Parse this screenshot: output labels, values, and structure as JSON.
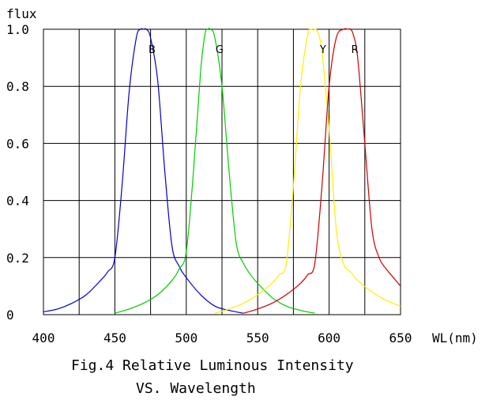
{
  "chart_data": {
    "type": "line",
    "ylabel": "flux",
    "xlabel": "WL(nm)",
    "xlim": [
      400,
      650
    ],
    "ylim": [
      0,
      1.0
    ],
    "x_ticks": [
      "400",
      "450",
      "500",
      "550",
      "600",
      "650"
    ],
    "y_ticks": [
      "0",
      "0.2",
      "0.4",
      "0.6",
      "0.8",
      "1.0"
    ],
    "grid": true,
    "caption_line1": "Fig.4 Relative Luminous Intensity",
    "caption_line2": "VS. Wavelength",
    "series": [
      {
        "name": "B",
        "color": "#0000cc",
        "x": [
          400,
          410,
          420,
          430,
          440,
          445,
          450,
          455,
          460,
          465,
          468,
          470,
          472,
          475,
          480,
          485,
          490,
          495,
          500,
          510,
          520,
          530,
          540
        ],
        "y": [
          0.01,
          0.02,
          0.04,
          0.07,
          0.12,
          0.15,
          0.2,
          0.45,
          0.78,
          0.97,
          1.0,
          1.0,
          1.0,
          0.97,
          0.82,
          0.5,
          0.24,
          0.17,
          0.13,
          0.07,
          0.03,
          0.015,
          0.005
        ]
      },
      {
        "name": "G",
        "color": "#00cc00",
        "x": [
          450,
          460,
          470,
          480,
          490,
          495,
          500,
          505,
          510,
          513,
          515,
          517,
          520,
          525,
          530,
          535,
          540,
          545,
          550,
          560,
          570,
          580,
          590
        ],
        "y": [
          0.005,
          0.02,
          0.04,
          0.07,
          0.12,
          0.16,
          0.22,
          0.5,
          0.85,
          0.98,
          1.0,
          1.0,
          0.97,
          0.8,
          0.5,
          0.25,
          0.18,
          0.14,
          0.11,
          0.06,
          0.03,
          0.015,
          0.005
        ]
      },
      {
        "name": "Y",
        "color": "#ffee00",
        "x": [
          520,
          530,
          540,
          550,
          560,
          565,
          570,
          575,
          580,
          585,
          588,
          590,
          592,
          595,
          600,
          605,
          610,
          615,
          620,
          630,
          640,
          650
        ],
        "y": [
          0.005,
          0.02,
          0.04,
          0.07,
          0.11,
          0.14,
          0.18,
          0.45,
          0.8,
          0.98,
          1.0,
          1.0,
          0.99,
          0.92,
          0.65,
          0.3,
          0.18,
          0.15,
          0.12,
          0.08,
          0.05,
          0.03
        ]
      },
      {
        "name": "R",
        "color": "#cc0000",
        "x": [
          540,
          550,
          560,
          570,
          580,
          585,
          590,
          595,
          600,
          605,
          610,
          613,
          615,
          617,
          620,
          625,
          630,
          635,
          640,
          645,
          650
        ],
        "y": [
          0.005,
          0.02,
          0.04,
          0.07,
          0.11,
          0.14,
          0.18,
          0.45,
          0.8,
          0.97,
          1.0,
          1.0,
          1.0,
          0.98,
          0.9,
          0.6,
          0.3,
          0.2,
          0.16,
          0.13,
          0.1
        ]
      }
    ]
  }
}
